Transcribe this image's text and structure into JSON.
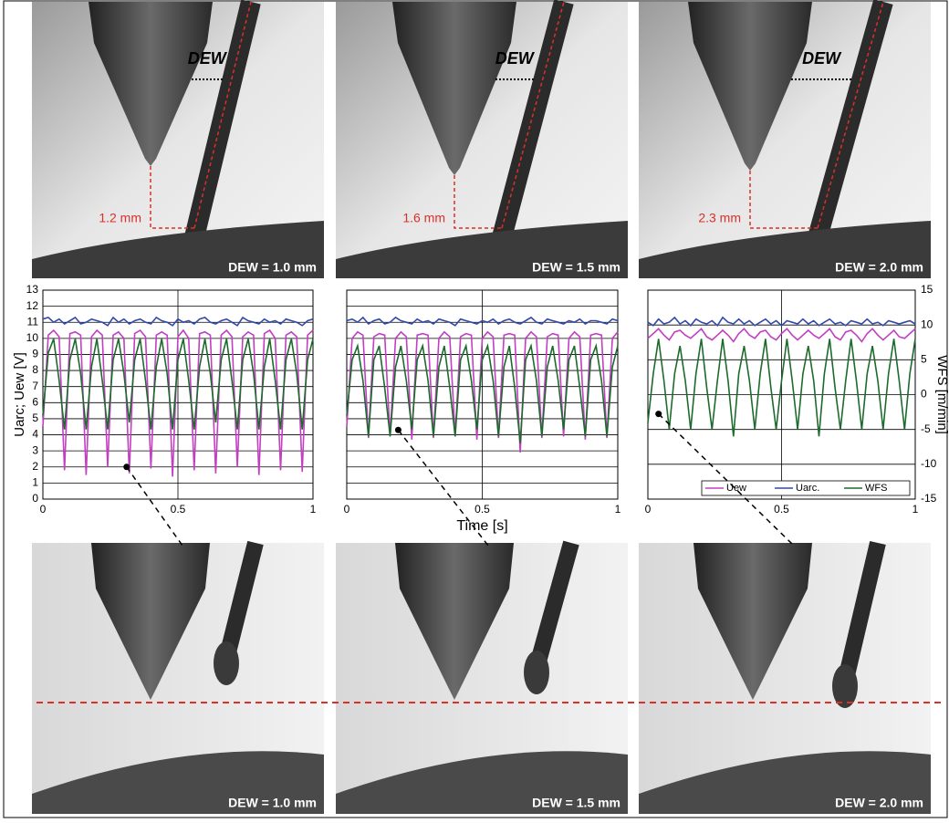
{
  "photos_top": [
    {
      "dew": "DEW",
      "distance": "1.2 mm",
      "caption": "DEW = 1.0 mm"
    },
    {
      "dew": "DEW",
      "distance": "1.6 mm",
      "caption": "DEW = 1.5 mm"
    },
    {
      "dew": "DEW",
      "distance": "2.3 mm",
      "caption": "DEW = 2.0 mm"
    }
  ],
  "photos_bottom": [
    {
      "caption": "DEW = 1.0 mm"
    },
    {
      "caption": "DEW = 1.5 mm"
    },
    {
      "caption": "DEW = 2.0 mm"
    }
  ],
  "chart_data": [
    {
      "type": "line",
      "ylabel": "Uarc; Uew [V]",
      "x": [
        0,
        0.02,
        0.04,
        0.06,
        0.08,
        0.1,
        0.12,
        0.14,
        0.16,
        0.18,
        0.2,
        0.22,
        0.24,
        0.26,
        0.28,
        0.3,
        0.32,
        0.34,
        0.36,
        0.38,
        0.4,
        0.42,
        0.44,
        0.46,
        0.48,
        0.5,
        0.52,
        0.54,
        0.56,
        0.58,
        0.6,
        0.62,
        0.64,
        0.66,
        0.68,
        0.7,
        0.72,
        0.74,
        0.76,
        0.78,
        0.8,
        0.82,
        0.84,
        0.86,
        0.88,
        0.9,
        0.92,
        0.94,
        0.96,
        0.98,
        1
      ],
      "xlim": [
        0,
        1
      ],
      "xticks": [
        0,
        0.5,
        1
      ],
      "ylim": [
        0,
        13
      ],
      "yticks": [
        0,
        1,
        2,
        3,
        4,
        5,
        6,
        7,
        8,
        9,
        10,
        11,
        12,
        13
      ],
      "show_ytick_labels": true,
      "y2lim": [
        -15,
        15
      ],
      "grid": true,
      "series": [
        {
          "color": "#c23fc2",
          "values": [
            4.5,
            10.2,
            10.5,
            10.1,
            1.8,
            10.3,
            10.4,
            10.2,
            1.5,
            10.1,
            10.5,
            10.2,
            2.0,
            10.2,
            10.4,
            10.0,
            1.6,
            10.3,
            10.5,
            10.1,
            1.9,
            10.2,
            10.4,
            10.2,
            1.4,
            10.1,
            10.5,
            10.0,
            1.8,
            10.3,
            10.4,
            10.2,
            1.6,
            10.2,
            10.5,
            10.1,
            2.0,
            10.1,
            10.4,
            10.2,
            1.5,
            10.3,
            10.5,
            10.0,
            1.8,
            10.2,
            10.4,
            10.1,
            1.7,
            10.2,
            10.5
          ]
        },
        {
          "color": "#3349a8",
          "values": [
            11.2,
            11.3,
            11.0,
            11.2,
            10.9,
            11.1,
            11.3,
            10.9,
            11.0,
            11.2,
            11.1,
            11.0,
            10.8,
            11.3,
            11.0,
            11.2,
            10.9,
            11.1,
            11.2,
            11.0,
            10.9,
            11.3,
            11.1,
            11.0,
            10.8,
            11.2,
            11.0,
            11.1,
            10.9,
            11.2,
            11.3,
            11.0,
            10.9,
            11.1,
            11.2,
            11.0,
            10.8,
            11.3,
            11.1,
            11.0,
            10.9,
            11.2,
            11.0,
            11.1,
            10.9,
            11.2,
            11.1,
            11.0,
            10.8,
            11.1,
            11.2
          ]
        },
        {
          "color": "#1d6b2c",
          "axis": "y2",
          "values": [
            -3,
            6,
            8,
            2,
            -5,
            5,
            8,
            3,
            -5,
            4,
            8,
            2,
            -5,
            5,
            8,
            3,
            -4,
            5,
            8,
            2,
            -5,
            4,
            8,
            3,
            -5,
            5,
            8,
            2,
            -5,
            4,
            8,
            3,
            -4,
            5,
            8,
            2,
            -5,
            5,
            8,
            3,
            -5,
            4,
            8,
            2,
            -5,
            5,
            8,
            3,
            -5,
            5,
            8
          ]
        }
      ],
      "highlight": {
        "x": 0.31,
        "y": 2.0
      }
    },
    {
      "type": "line",
      "xlabel": "Time [s]",
      "x": [
        0,
        0.02,
        0.04,
        0.06,
        0.08,
        0.1,
        0.12,
        0.14,
        0.16,
        0.18,
        0.2,
        0.22,
        0.24,
        0.26,
        0.28,
        0.3,
        0.32,
        0.34,
        0.36,
        0.38,
        0.4,
        0.42,
        0.44,
        0.46,
        0.48,
        0.5,
        0.52,
        0.54,
        0.56,
        0.58,
        0.6,
        0.62,
        0.64,
        0.66,
        0.68,
        0.7,
        0.72,
        0.74,
        0.76,
        0.78,
        0.8,
        0.82,
        0.84,
        0.86,
        0.88,
        0.9,
        0.92,
        0.94,
        0.96,
        0.98,
        1
      ],
      "xlim": [
        0,
        1
      ],
      "xticks": [
        0,
        0.5,
        1
      ],
      "ylim": [
        0,
        13
      ],
      "yticks": [
        0,
        1,
        2,
        3,
        4,
        5,
        6,
        7,
        8,
        9,
        10,
        11,
        12,
        13
      ],
      "show_ytick_labels": false,
      "y2lim": [
        -15,
        15
      ],
      "grid": true,
      "series": [
        {
          "color": "#c23fc2",
          "values": [
            4.5,
            10.0,
            10.4,
            10.2,
            3.8,
            10.1,
            10.3,
            10.2,
            3.9,
            10.0,
            10.4,
            10.1,
            3.7,
            10.2,
            10.3,
            10.2,
            3.8,
            10.0,
            10.4,
            10.1,
            3.9,
            10.1,
            10.3,
            10.2,
            3.7,
            10.0,
            10.4,
            10.1,
            3.8,
            10.2,
            10.3,
            10.2,
            2.9,
            10.0,
            10.4,
            10.1,
            3.8,
            10.1,
            10.3,
            10.2,
            3.9,
            10.0,
            10.4,
            10.1,
            3.7,
            10.2,
            10.3,
            10.2,
            3.8,
            10.0,
            10.4
          ]
        },
        {
          "color": "#3349a8",
          "values": [
            11.1,
            11.2,
            11.0,
            11.3,
            10.9,
            11.1,
            11.2,
            10.9,
            11.0,
            11.3,
            11.1,
            11.0,
            10.9,
            11.2,
            11.0,
            11.1,
            10.9,
            11.2,
            11.1,
            11.0,
            10.8,
            11.2,
            11.1,
            11.0,
            10.9,
            11.1,
            11.0,
            11.2,
            10.9,
            11.1,
            11.2,
            11.0,
            10.9,
            11.1,
            11.3,
            11.0,
            10.9,
            11.2,
            11.1,
            11.0,
            10.9,
            11.1,
            11.0,
            11.2,
            10.9,
            11.1,
            11.1,
            11.0,
            10.9,
            11.2,
            11.1
          ]
        },
        {
          "color": "#1d6b2c",
          "axis": "y2",
          "values": [
            -3,
            5,
            7,
            2,
            -6,
            5,
            7,
            1,
            -6,
            4,
            7,
            2,
            -5,
            5,
            7,
            2,
            -6,
            4,
            7,
            1,
            -6,
            5,
            7,
            2,
            -5,
            5,
            7,
            2,
            -6,
            4,
            7,
            1,
            -7,
            5,
            7,
            2,
            -6,
            4,
            7,
            2,
            -5,
            5,
            7,
            1,
            -6,
            5,
            7,
            2,
            -6,
            4,
            7
          ]
        }
      ],
      "highlight": {
        "x": 0.19,
        "y": 4.3
      }
    },
    {
      "type": "line",
      "y2label": "WFS [m/min]",
      "x": [
        0,
        0.02,
        0.04,
        0.06,
        0.08,
        0.1,
        0.12,
        0.14,
        0.16,
        0.18,
        0.2,
        0.22,
        0.24,
        0.26,
        0.28,
        0.3,
        0.32,
        0.34,
        0.36,
        0.38,
        0.4,
        0.42,
        0.44,
        0.46,
        0.48,
        0.5,
        0.52,
        0.54,
        0.56,
        0.58,
        0.6,
        0.62,
        0.64,
        0.66,
        0.68,
        0.7,
        0.72,
        0.74,
        0.76,
        0.78,
        0.8,
        0.82,
        0.84,
        0.86,
        0.88,
        0.9,
        0.92,
        0.94,
        0.96,
        0.98,
        1
      ],
      "xlim": [
        0,
        1
      ],
      "xticks": [
        0,
        0.5,
        1
      ],
      "ylim": [
        0,
        13
      ],
      "y2lim": [
        -15,
        15
      ],
      "y2ticks": [
        15,
        10,
        5,
        0,
        -5,
        -10,
        -15
      ],
      "grid": true,
      "legend": "lower right",
      "series": [
        {
          "name": "Uew",
          "color": "#c23fc2",
          "values": [
            10.0,
            10.3,
            10.6,
            10.2,
            9.9,
            10.4,
            10.5,
            10.2,
            10.0,
            10.3,
            10.6,
            10.1,
            9.9,
            10.2,
            10.5,
            10.2,
            9.8,
            10.3,
            10.6,
            10.2,
            10.0,
            10.4,
            10.5,
            10.1,
            9.9,
            10.3,
            10.6,
            10.2,
            9.9,
            10.2,
            10.5,
            10.2,
            10.0,
            10.3,
            10.6,
            10.1,
            9.9,
            10.4,
            10.5,
            10.2,
            9.8,
            10.3,
            10.6,
            10.2,
            9.9,
            10.2,
            10.5,
            10.1,
            10.0,
            10.3,
            10.6
          ]
        },
        {
          "name": "Uarc.",
          "color": "#3349a8",
          "values": [
            11.0,
            10.8,
            11.2,
            10.9,
            11.0,
            11.3,
            10.9,
            11.1,
            10.8,
            11.2,
            11.0,
            10.9,
            11.1,
            10.8,
            11.3,
            11.0,
            10.9,
            11.2,
            10.9,
            11.1,
            10.8,
            11.0,
            11.2,
            10.9,
            11.1,
            10.8,
            11.1,
            11.0,
            10.9,
            11.2,
            10.9,
            11.1,
            10.8,
            11.0,
            11.2,
            10.9,
            11.0,
            10.8,
            11.1,
            11.0,
            10.9,
            11.2,
            10.9,
            11.0,
            10.8,
            11.1,
            11.0,
            10.9,
            11.0,
            11.1,
            10.9
          ]
        },
        {
          "name": "WFS",
          "color": "#1d6b2c",
          "axis": "y2",
          "values": [
            -4,
            3,
            8,
            2,
            -5,
            3,
            7,
            2,
            -5,
            3,
            8,
            1,
            -5,
            2,
            8,
            2,
            -6,
            3,
            7,
            2,
            -5,
            3,
            8,
            1,
            -5,
            2,
            8,
            2,
            -5,
            3,
            7,
            2,
            -6,
            3,
            8,
            1,
            -5,
            2,
            8,
            2,
            -5,
            3,
            7,
            2,
            -5,
            3,
            8,
            2,
            -5,
            3,
            8
          ]
        }
      ],
      "highlight": {
        "x": 0.04,
        "y": 5.3
      }
    }
  ]
}
